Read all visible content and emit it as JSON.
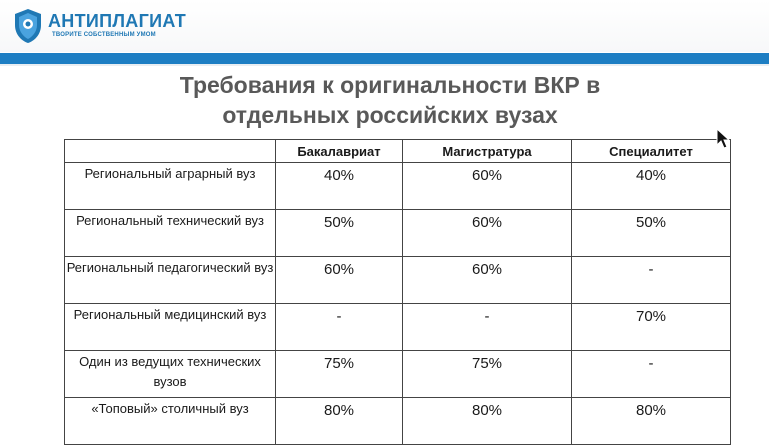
{
  "header": {
    "logo_name": "АНТИПЛАГИАТ",
    "logo_slogan": "ТВОРИТЕ СОБСТВЕННЫМ УМОМ",
    "accent_color": "#1d7ec3"
  },
  "slide": {
    "title_line1": "Требования к оригинальности ВКР в",
    "title_line2": "отдельных российских вузах"
  },
  "table": {
    "columns": [
      "",
      "Бакалавриат",
      "Магистратура",
      "Специалитет"
    ],
    "rows": [
      {
        "name": "Региональный аграрный вуз",
        "values": [
          "40%",
          "60%",
          "40%"
        ]
      },
      {
        "name": "Региональный технический вуз",
        "values": [
          "50%",
          "60%",
          "50%"
        ]
      },
      {
        "name": "Региональный педагогический вуз",
        "values": [
          "60%",
          "60%",
          "-"
        ]
      },
      {
        "name": "Региональный медицинский вуз",
        "values": [
          "-",
          "-",
          "70%"
        ]
      },
      {
        "name": "Один из ведущих технических вузов",
        "values": [
          "75%",
          "75%",
          "-"
        ]
      },
      {
        "name": "«Топовый» столичный вуз",
        "values": [
          "80%",
          "80%",
          "80%"
        ]
      }
    ]
  },
  "cursor_icon": "arrow-cursor-icon"
}
